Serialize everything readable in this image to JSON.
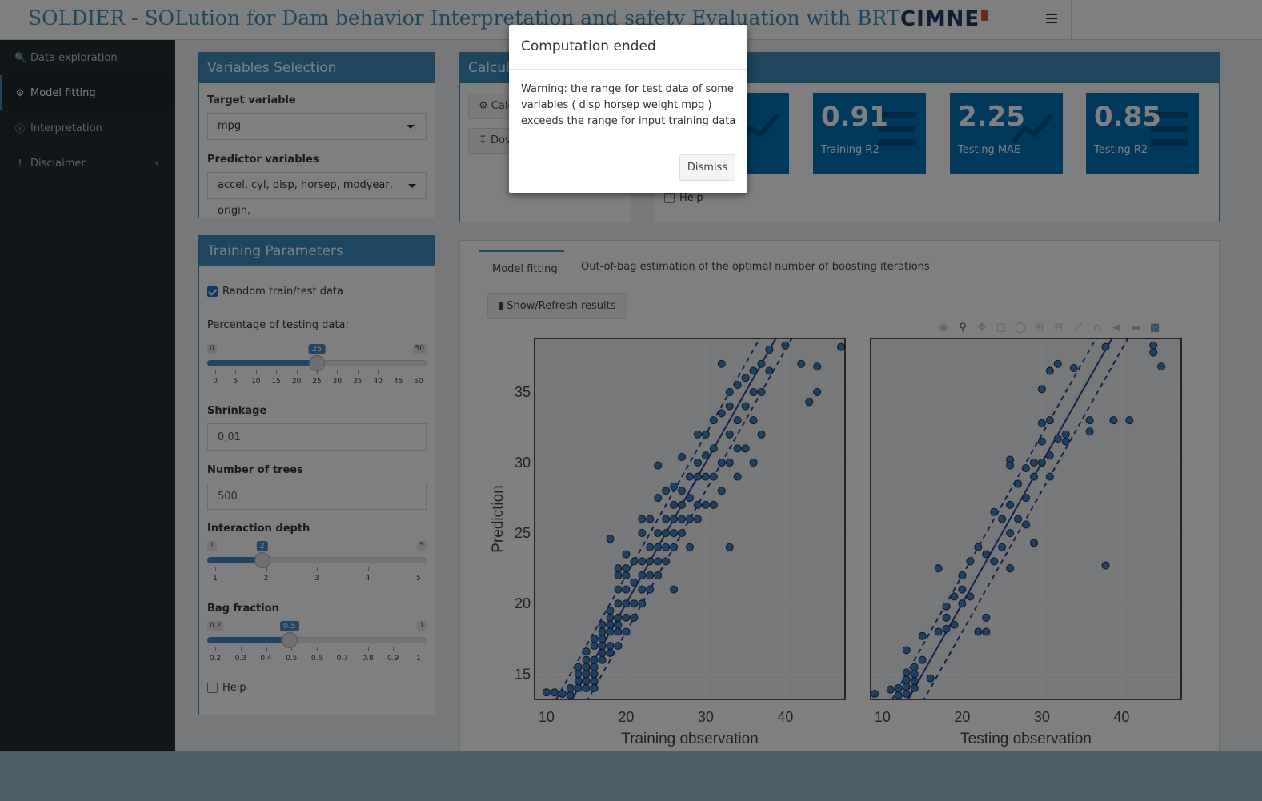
{
  "header": {
    "title": "SOLDIER - SOLution for Dam behavior Interpretation and safety Evaluation with BRT",
    "logo_text": "CIMNE"
  },
  "sidebar": {
    "items": [
      {
        "label": "Data exploration",
        "icon": "search-icon"
      },
      {
        "label": "Model fitting",
        "icon": "gear-icon"
      },
      {
        "label": "Interpretation",
        "icon": "info-icon"
      },
      {
        "label": "Disclaimer",
        "icon": "exclamation-icon"
      }
    ]
  },
  "variables_selection": {
    "title": "Variables Selection",
    "target_label": "Target variable",
    "target_value": "mpg",
    "predictor_label": "Predictor variables",
    "predictor_value": "accel, cyl, disp, horsep, modyear, origin,"
  },
  "training_parameters": {
    "title": "Training Parameters",
    "random_split_label": "Random train/test data",
    "random_split_checked": true,
    "pct_label": "Percentage of testing data:",
    "pct_slider": {
      "min": "0",
      "max": "50",
      "value": "25",
      "fraction": 0.5,
      "ticks": [
        "0",
        "5",
        "10",
        "15",
        "20",
        "25",
        "30",
        "35",
        "40",
        "45",
        "50"
      ]
    },
    "shrinkage_label": "Shrinkage",
    "shrinkage_value": "0,01",
    "ntrees_label": "Number of trees",
    "ntrees_value": "500",
    "depth_label": "Interaction depth",
    "depth_slider": {
      "min": "1",
      "max": "5",
      "value": "2",
      "fraction": 0.25,
      "ticks": [
        "1",
        "2",
        "3",
        "4",
        "5"
      ]
    },
    "bag_label": "Bag fraction",
    "bag_slider": {
      "min": "0.2",
      "max": "1",
      "value": "0.5",
      "fraction": 0.375,
      "ticks": [
        "0.2",
        "0.3",
        "0.4",
        "0.5",
        "0.6",
        "0.7",
        "0.8",
        "0.9",
        "1"
      ]
    },
    "help_label": "Help"
  },
  "calc_box": {
    "title": "Calcula",
    "calc_button": "Calc",
    "download_button": "Dov"
  },
  "results": {
    "help_label": "Help",
    "value_boxes": [
      {
        "value": "0.91",
        "label": "Training R2",
        "icon": "list-icon"
      },
      {
        "value": "2.25",
        "label": "Testing MAE",
        "icon": "line-chart-icon"
      },
      {
        "value": "0.85",
        "label": "Testing R2",
        "icon": "list-icon"
      }
    ]
  },
  "tabs": [
    {
      "label": "Model fitting",
      "active": true
    },
    {
      "label": "Out-of-bag estimation of the optimal number of boosting iterations",
      "active": false
    }
  ],
  "show_refresh_label": "Show/Refresh results",
  "modal": {
    "title": "Computation ended",
    "body": "Warning: the range for test data of some variables ( disp horsep weight mpg ) exceeds the range for input training data",
    "dismiss_label": "Dismiss"
  },
  "chart_data": [
    {
      "type": "scatter",
      "title": "",
      "xlabel": "Training observation",
      "ylabel": "Prediction",
      "xlim": [
        8.5,
        47.5
      ],
      "ylim": [
        13.2,
        38.8
      ],
      "xticks": [
        10,
        20,
        30,
        40
      ],
      "yticks": [
        15,
        20,
        25,
        30,
        35
      ],
      "reference_lines": [
        "y = x",
        "y = x - 2",
        "y = x + 2"
      ],
      "points": [
        [
          10,
          13.7
        ],
        [
          11,
          13.7
        ],
        [
          12,
          13.6
        ],
        [
          13,
          13.5
        ],
        [
          13,
          14
        ],
        [
          14,
          14
        ],
        [
          14,
          14.5
        ],
        [
          14,
          15
        ],
        [
          14,
          15.5
        ],
        [
          15,
          14
        ],
        [
          15,
          14.5
        ],
        [
          15,
          15
        ],
        [
          15,
          15.5
        ],
        [
          15,
          16
        ],
        [
          15,
          16.6
        ],
        [
          16,
          14
        ],
        [
          16,
          14.5
        ],
        [
          16,
          15
        ],
        [
          16,
          15.5
        ],
        [
          16,
          16
        ],
        [
          16,
          17
        ],
        [
          16,
          17.5
        ],
        [
          17,
          16
        ],
        [
          17,
          16.5
        ],
        [
          17,
          17
        ],
        [
          17,
          17.5
        ],
        [
          17,
          18
        ],
        [
          17,
          18.5
        ],
        [
          18,
          16.5
        ],
        [
          18,
          17
        ],
        [
          18,
          18
        ],
        [
          18,
          18.5
        ],
        [
          18,
          19
        ],
        [
          18,
          19.5
        ],
        [
          18,
          24.6
        ],
        [
          19,
          17
        ],
        [
          19,
          18
        ],
        [
          19,
          18.5
        ],
        [
          19,
          19
        ],
        [
          19,
          20
        ],
        [
          19,
          21
        ],
        [
          19,
          22
        ],
        [
          19,
          22.5
        ],
        [
          20,
          18
        ],
        [
          20,
          19
        ],
        [
          20,
          20
        ],
        [
          20,
          21
        ],
        [
          20,
          22
        ],
        [
          20,
          22.5
        ],
        [
          20,
          23.5
        ],
        [
          21,
          19
        ],
        [
          21,
          20
        ],
        [
          21,
          21.5
        ],
        [
          21,
          23
        ],
        [
          22,
          20
        ],
        [
          22,
          21
        ],
        [
          22,
          22
        ],
        [
          22,
          23
        ],
        [
          22,
          25
        ],
        [
          22,
          26
        ],
        [
          23,
          21
        ],
        [
          23,
          22
        ],
        [
          23,
          23
        ],
        [
          23,
          24
        ],
        [
          23,
          26
        ],
        [
          24,
          22
        ],
        [
          24,
          23
        ],
        [
          24,
          24
        ],
        [
          24,
          25
        ],
        [
          24,
          27.5
        ],
        [
          24,
          29.8
        ],
        [
          25,
          23
        ],
        [
          25,
          24
        ],
        [
          25,
          25
        ],
        [
          25,
          26
        ],
        [
          25,
          28
        ],
        [
          26,
          24
        ],
        [
          26,
          25
        ],
        [
          26,
          26
        ],
        [
          26,
          27
        ],
        [
          26,
          28.3
        ],
        [
          26,
          21
        ],
        [
          27,
          25
        ],
        [
          27,
          26
        ],
        [
          27,
          27
        ],
        [
          27,
          28
        ],
        [
          27,
          30.4
        ],
        [
          28,
          24
        ],
        [
          28,
          26
        ],
        [
          28,
          27.5
        ],
        [
          28,
          29
        ],
        [
          29,
          26
        ],
        [
          29,
          27
        ],
        [
          29,
          29
        ],
        [
          29,
          30
        ],
        [
          29,
          32
        ],
        [
          30,
          27
        ],
        [
          30,
          29
        ],
        [
          30,
          30.5
        ],
        [
          30,
          32
        ],
        [
          31,
          27
        ],
        [
          31,
          29
        ],
        [
          31,
          31
        ],
        [
          31,
          33
        ],
        [
          32,
          28
        ],
        [
          32,
          30
        ],
        [
          32,
          33.5
        ],
        [
          32,
          37
        ],
        [
          33,
          24
        ],
        [
          33,
          30
        ],
        [
          33,
          32
        ],
        [
          33,
          34
        ],
        [
          33,
          35
        ],
        [
          34,
          29
        ],
        [
          34,
          31
        ],
        [
          34,
          33
        ],
        [
          34,
          35.5
        ],
        [
          35,
          31
        ],
        [
          35,
          34
        ],
        [
          35,
          36
        ],
        [
          36,
          30
        ],
        [
          36,
          33
        ],
        [
          36,
          35
        ],
        [
          36,
          36.5
        ],
        [
          37,
          32
        ],
        [
          37,
          35
        ],
        [
          37,
          37
        ],
        [
          38,
          36.5
        ],
        [
          38,
          38
        ],
        [
          40,
          38.3
        ],
        [
          42,
          37
        ],
        [
          43,
          34.3
        ],
        [
          44,
          35
        ],
        [
          44,
          36.8
        ],
        [
          47,
          38.2
        ]
      ]
    },
    {
      "type": "scatter",
      "title": "",
      "xlabel": "Testing observation",
      "ylabel": "",
      "xlim": [
        8.5,
        47.5
      ],
      "ylim": [
        13.2,
        38.8
      ],
      "xticks": [
        10,
        20,
        30,
        40
      ],
      "yticks": [
        15,
        20,
        25,
        30,
        35
      ],
      "reference_lines": [
        "y = x",
        "y = x - 2",
        "y = x + 2"
      ],
      "points": [
        [
          9,
          13.6
        ],
        [
          11,
          13.9
        ],
        [
          12,
          13.5
        ],
        [
          12,
          14
        ],
        [
          13,
          13.6
        ],
        [
          13,
          14.1
        ],
        [
          13,
          14.6
        ],
        [
          13,
          15.1
        ],
        [
          13,
          16.7
        ],
        [
          14,
          14
        ],
        [
          14,
          14.5
        ],
        [
          14,
          15
        ],
        [
          14,
          15.5
        ],
        [
          15,
          16
        ],
        [
          15,
          17.7
        ],
        [
          16,
          14.7
        ],
        [
          17,
          22.5
        ],
        [
          17,
          18
        ],
        [
          18,
          18.2
        ],
        [
          18,
          19
        ],
        [
          18,
          19.8
        ],
        [
          19,
          18.5
        ],
        [
          19,
          20.5
        ],
        [
          20,
          20
        ],
        [
          20,
          21
        ],
        [
          20,
          22
        ],
        [
          21,
          20.5
        ],
        [
          21,
          23
        ],
        [
          22,
          24
        ],
        [
          22,
          18
        ],
        [
          23,
          18
        ],
        [
          23,
          19
        ],
        [
          23,
          23.5
        ],
        [
          24,
          23
        ],
        [
          24,
          26.5
        ],
        [
          25,
          24
        ],
        [
          25,
          26
        ],
        [
          26,
          22.5
        ],
        [
          26,
          25
        ],
        [
          26,
          27
        ],
        [
          26,
          30.2
        ],
        [
          26,
          29.8
        ],
        [
          27,
          26
        ],
        [
          27,
          28.5
        ],
        [
          28,
          25.6
        ],
        [
          28,
          27.5
        ],
        [
          28,
          29.6
        ],
        [
          29,
          24.3
        ],
        [
          29,
          29
        ],
        [
          29,
          30
        ],
        [
          30,
          32.8
        ],
        [
          30,
          35.2
        ],
        [
          30,
          30
        ],
        [
          30,
          31.5
        ],
        [
          31,
          29
        ],
        [
          31,
          30.5
        ],
        [
          31,
          33
        ],
        [
          31,
          36.5
        ],
        [
          32,
          31.7
        ],
        [
          32,
          37
        ],
        [
          33,
          32
        ],
        [
          33,
          31.5
        ],
        [
          34,
          36.7
        ],
        [
          36,
          33
        ],
        [
          36,
          32.2
        ],
        [
          38,
          22.7
        ],
        [
          38,
          38.2
        ],
        [
          39,
          33
        ],
        [
          41,
          33
        ],
        [
          44,
          37.8
        ],
        [
          44,
          38.3
        ],
        [
          45,
          36.8
        ]
      ]
    }
  ]
}
